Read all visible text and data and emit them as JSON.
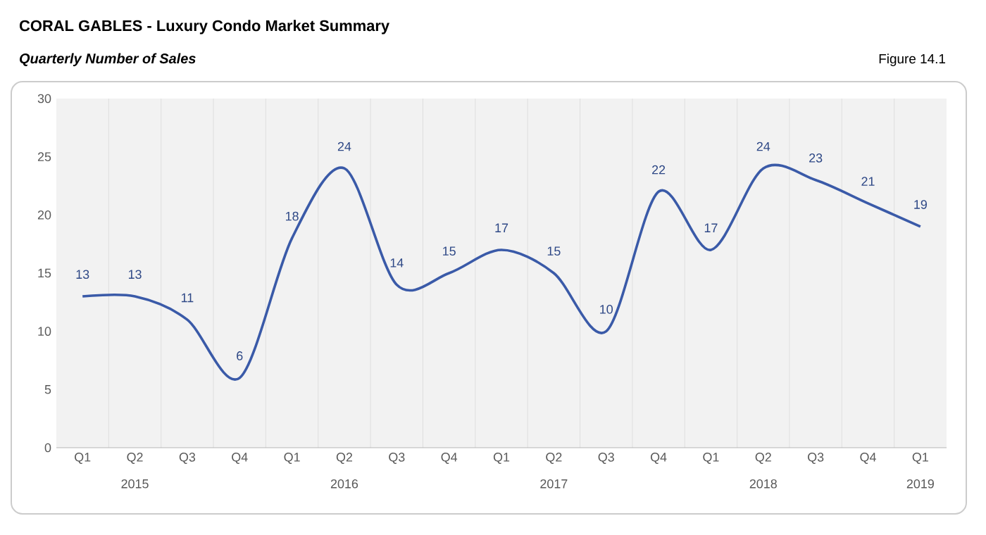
{
  "chart_data": {
    "type": "line",
    "title": "CORAL GABLES - Luxury Condo Market Summary",
    "subtitle": "Quarterly Number of Sales",
    "categories": [
      "Q1",
      "Q2",
      "Q3",
      "Q4",
      "Q1",
      "Q2",
      "Q3",
      "Q4",
      "Q1",
      "Q2",
      "Q3",
      "Q4",
      "Q1",
      "Q2",
      "Q3",
      "Q4",
      "Q1"
    ],
    "values": [
      13,
      13,
      11,
      6,
      18,
      24,
      14,
      15,
      17,
      15,
      10,
      22,
      17,
      24,
      23,
      21,
      19
    ],
    "color": "#3a5aa8",
    "ylim": [
      0,
      30
    ],
    "yticks": [
      0,
      5,
      10,
      15,
      20,
      25,
      30
    ],
    "grid": "x",
    "data_labels": true,
    "marker": "none",
    "annotations": [
      "Figure 14.1",
      "2015",
      "2016",
      "2017",
      "2018",
      "2019"
    ]
  }
}
